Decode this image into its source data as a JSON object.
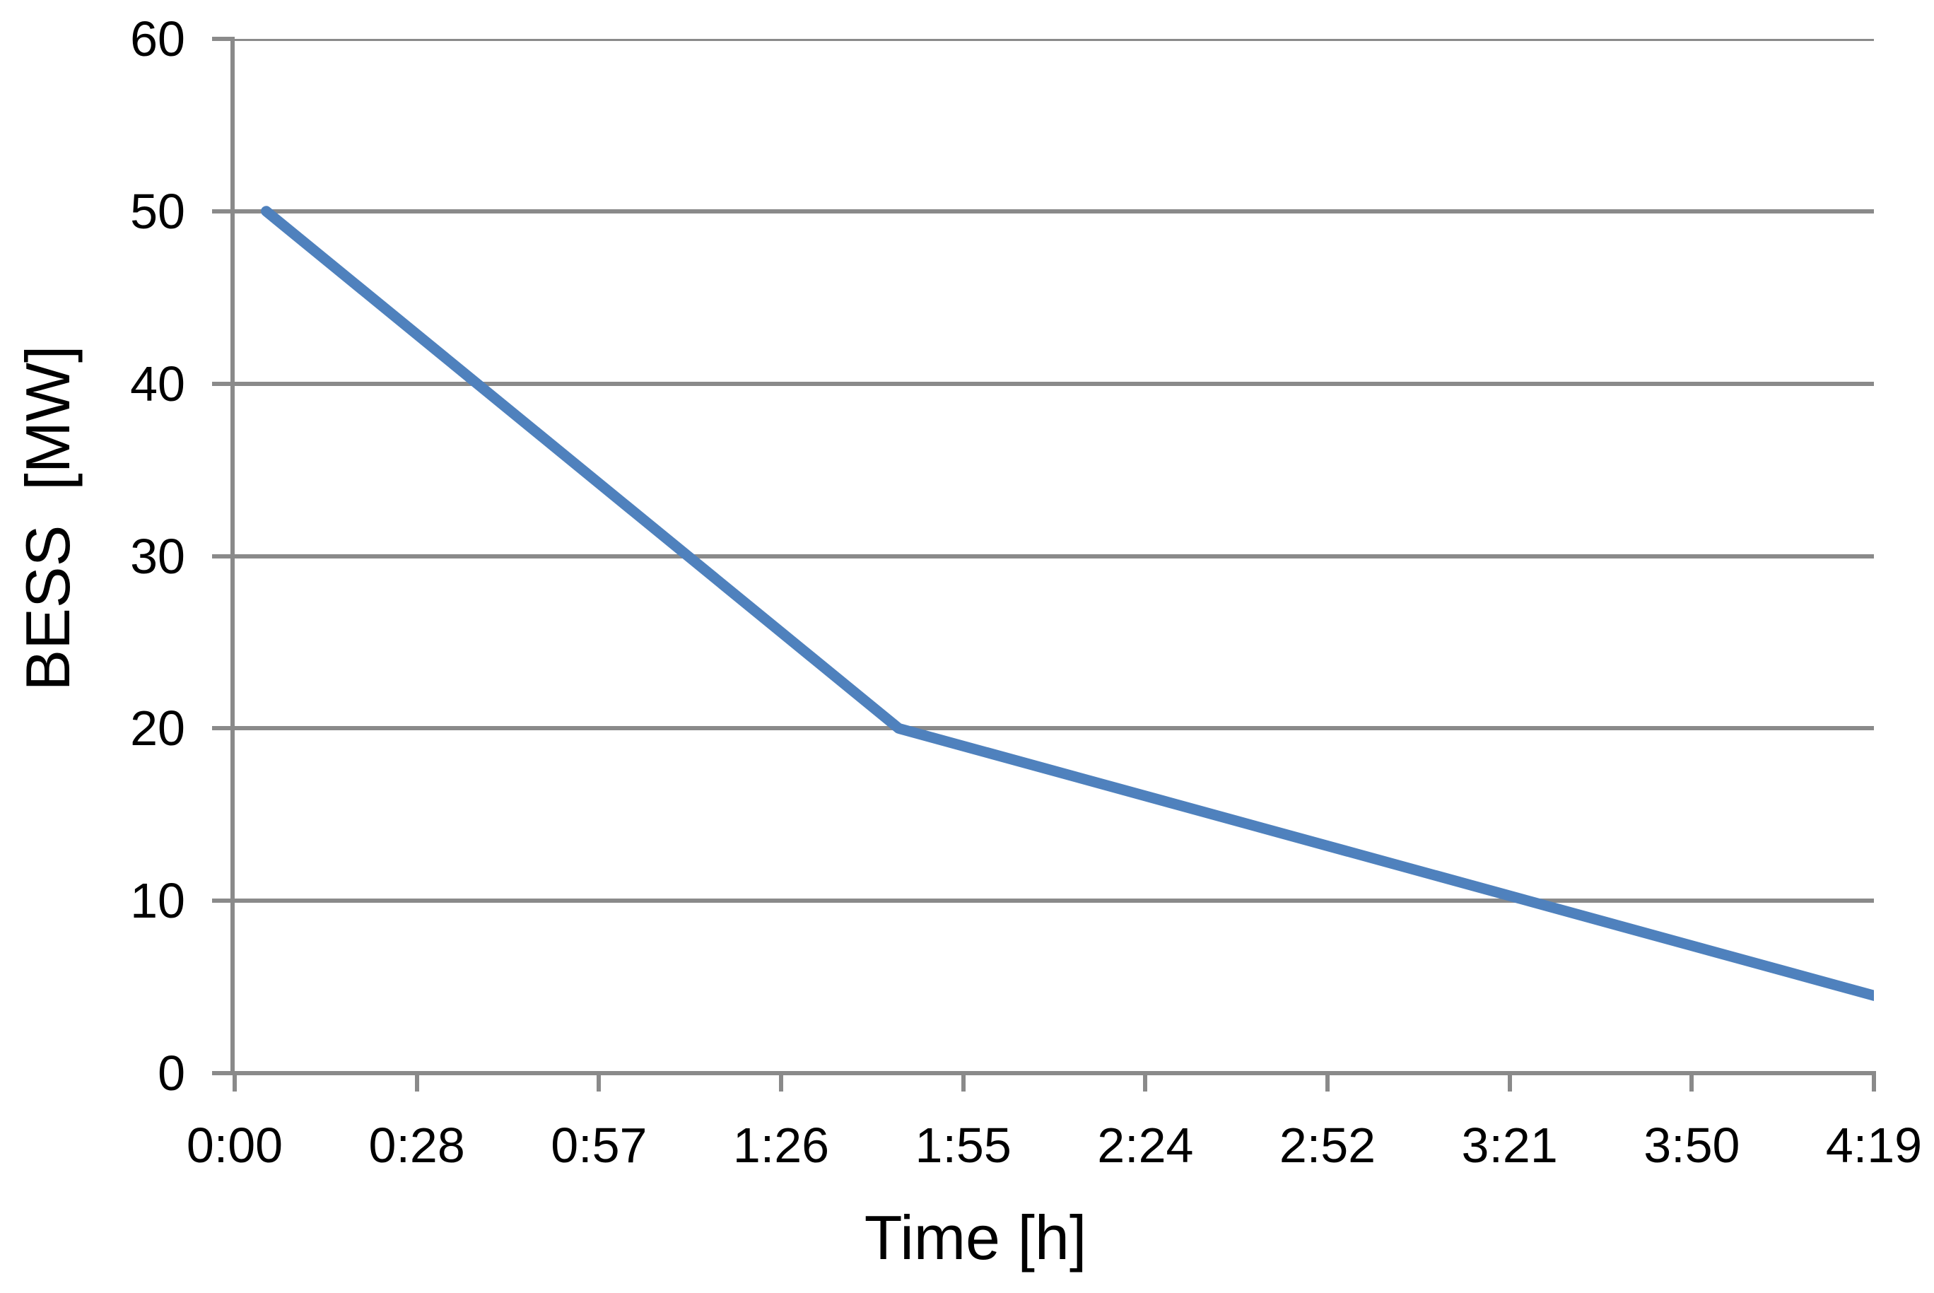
{
  "chart_data": {
    "type": "line",
    "title": "",
    "xlabel": "Time [h]",
    "ylabel": "BESS  [MW]",
    "x_tick_labels": [
      "0:00",
      "0:28",
      "0:57",
      "1:26",
      "1:55",
      "2:24",
      "2:52",
      "3:21",
      "3:50",
      "4:19"
    ],
    "x_tick_hours": [
      0.0,
      0.48,
      0.96,
      1.44,
      1.92,
      2.4,
      2.88,
      3.36,
      3.84,
      4.32
    ],
    "y_tick_labels": [
      "0",
      "10",
      "20",
      "30",
      "40",
      "50",
      "60"
    ],
    "y_tick_values": [
      0,
      10,
      20,
      30,
      40,
      50,
      60
    ],
    "xlim": [
      0.0,
      4.32
    ],
    "ylim": [
      0,
      60
    ],
    "grid": "horizontal-only",
    "legend": "none",
    "series": [
      {
        "color": "#4F81BD",
        "points": [
          {
            "t_hours": 0.083,
            "mw": 50
          },
          {
            "t_hours": 1.75,
            "mw": 20
          },
          {
            "t_hours": 4.32,
            "mw": 4.5
          }
        ]
      }
    ],
    "style": {
      "line_color": "#4F81BD",
      "axis_color": "#8A8A8A",
      "grid_color": "#8A8A8A",
      "text_color": "#000000",
      "background": "#FFFFFF"
    }
  }
}
